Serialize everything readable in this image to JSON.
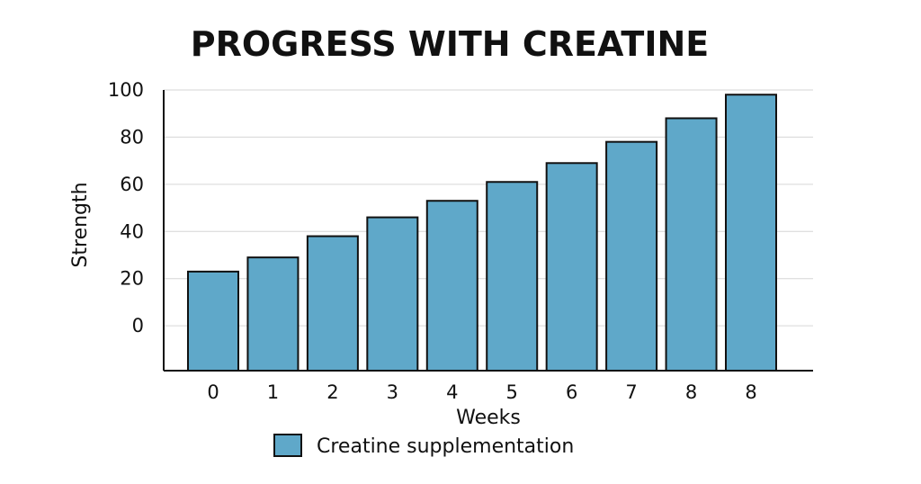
{
  "chart_data": {
    "type": "bar",
    "title": "PROGRESS WITH CREATINE",
    "xlabel": "Weeks",
    "ylabel": "Strength",
    "categories": [
      "0",
      "1",
      "2",
      "3",
      "4",
      "5",
      "6",
      "7",
      "8",
      "8"
    ],
    "series": [
      {
        "name": "Creatine supplementation",
        "values": [
          23,
          29,
          38,
          46,
          53,
          61,
          69,
          78,
          88,
          98
        ],
        "color": "#5fa8c9"
      }
    ],
    "ylim": [
      -19,
      100
    ],
    "yticks": [
      0,
      20,
      40,
      60,
      80,
      100
    ],
    "grid": true,
    "legend": "bottom-center"
  }
}
